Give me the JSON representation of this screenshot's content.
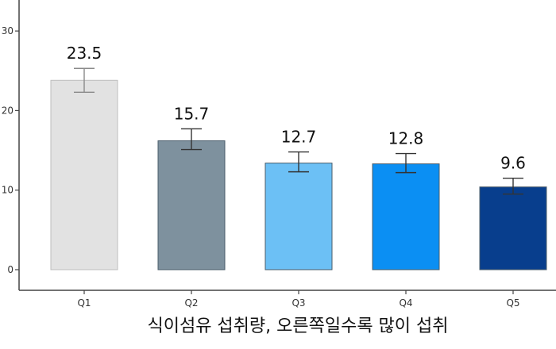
{
  "chart_data": {
    "type": "bar",
    "categories": [
      "Q1",
      "Q2",
      "Q3",
      "Q4",
      "Q5"
    ],
    "values": [
      23.5,
      15.7,
      12.7,
      12.8,
      9.6
    ],
    "data_labels": [
      "23.5",
      "15.7",
      "12.7",
      "12.8",
      "9.6"
    ],
    "error_bars": [
      {
        "low": 22.3,
        "high": 25.3
      },
      {
        "low": 15.1,
        "high": 17.7
      },
      {
        "low": 12.3,
        "high": 14.8
      },
      {
        "low": 12.2,
        "high": 14.6
      },
      {
        "low": 9.5,
        "high": 11.5
      }
    ],
    "bar_tops": [
      23.8,
      16.2,
      13.4,
      13.3,
      10.4
    ],
    "colors": [
      "#e2e2e2",
      "#7e919e",
      "#6cc0f5",
      "#0b8ff3",
      "#083e8d"
    ],
    "yticks": [
      0,
      10,
      20,
      30
    ],
    "ylim": [
      0,
      31
    ],
    "xlabel": "식이섬유 섭취량, 오른쪽일수록 많이 섭취",
    "ylabel": "",
    "title": "",
    "grid": false,
    "legend": "none"
  }
}
